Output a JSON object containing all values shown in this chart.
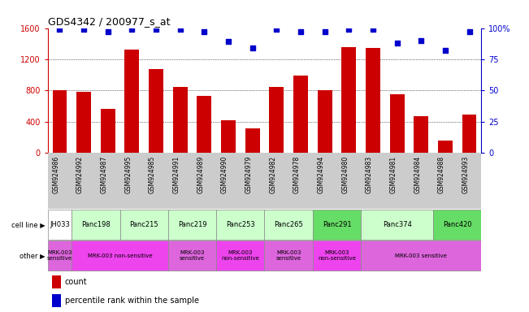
{
  "title": "GDS4342 / 200977_s_at",
  "x_labels": [
    "GSM924986",
    "GSM924992",
    "GSM924987",
    "GSM924995",
    "GSM924985",
    "GSM924991",
    "GSM924989",
    "GSM924990",
    "GSM924979",
    "GSM924982",
    "GSM924978",
    "GSM924994",
    "GSM924980",
    "GSM924983",
    "GSM924981",
    "GSM924984",
    "GSM924988",
    "GSM924993"
  ],
  "bar_values": [
    800,
    780,
    560,
    1320,
    1070,
    850,
    730,
    420,
    310,
    850,
    990,
    800,
    1360,
    1350,
    750,
    470,
    160,
    490
  ],
  "dot_values": [
    99,
    99,
    97,
    99,
    99,
    99,
    97,
    89,
    84,
    99,
    97,
    97,
    99,
    99,
    88,
    90,
    82,
    97
  ],
  "bar_color": "#cc0000",
  "dot_color": "#0000cc",
  "ylim_left": [
    0,
    1600
  ],
  "ylim_right": [
    0,
    100
  ],
  "yticks_left": [
    0,
    400,
    800,
    1200,
    1600
  ],
  "yticks_right": [
    0,
    25,
    50,
    75,
    100
  ],
  "ytick_labels_right": [
    "0",
    "25",
    "50",
    "75",
    "100%"
  ],
  "cell_line_groups": [
    {
      "label": "JH033",
      "start": 0,
      "end": 1,
      "color": "#ffffff"
    },
    {
      "label": "Panc198",
      "start": 1,
      "end": 3,
      "color": "#ccffcc"
    },
    {
      "label": "Panc215",
      "start": 3,
      "end": 5,
      "color": "#ccffcc"
    },
    {
      "label": "Panc219",
      "start": 5,
      "end": 7,
      "color": "#ccffcc"
    },
    {
      "label": "Panc253",
      "start": 7,
      "end": 9,
      "color": "#ccffcc"
    },
    {
      "label": "Panc265",
      "start": 9,
      "end": 11,
      "color": "#ccffcc"
    },
    {
      "label": "Panc291",
      "start": 11,
      "end": 13,
      "color": "#66dd66"
    },
    {
      "label": "Panc374",
      "start": 13,
      "end": 16,
      "color": "#ccffcc"
    },
    {
      "label": "Panc420",
      "start": 16,
      "end": 18,
      "color": "#66dd66"
    }
  ],
  "other_groups": [
    {
      "label": "MRK-003\nsensitive",
      "start": 0,
      "end": 1,
      "color": "#dd66dd"
    },
    {
      "label": "MRK-003 non-sensitive",
      "start": 1,
      "end": 5,
      "color": "#ee44ee"
    },
    {
      "label": "MRK-003\nsensitive",
      "start": 5,
      "end": 7,
      "color": "#dd66dd"
    },
    {
      "label": "MRK-003\nnon-sensitive",
      "start": 7,
      "end": 9,
      "color": "#ee44ee"
    },
    {
      "label": "MRK-003\nsensitive",
      "start": 9,
      "end": 11,
      "color": "#dd66dd"
    },
    {
      "label": "MRK-003\nnon-sensitive",
      "start": 11,
      "end": 13,
      "color": "#ee44ee"
    },
    {
      "label": "MRK-003 sensitive",
      "start": 13,
      "end": 18,
      "color": "#dd66dd"
    }
  ],
  "legend_count_color": "#cc0000",
  "legend_dot_color": "#0000cc",
  "background_color": "#ffffff",
  "grid_lines": [
    400,
    800,
    1200
  ],
  "grid_color": "black",
  "grid_lw": 0.5
}
